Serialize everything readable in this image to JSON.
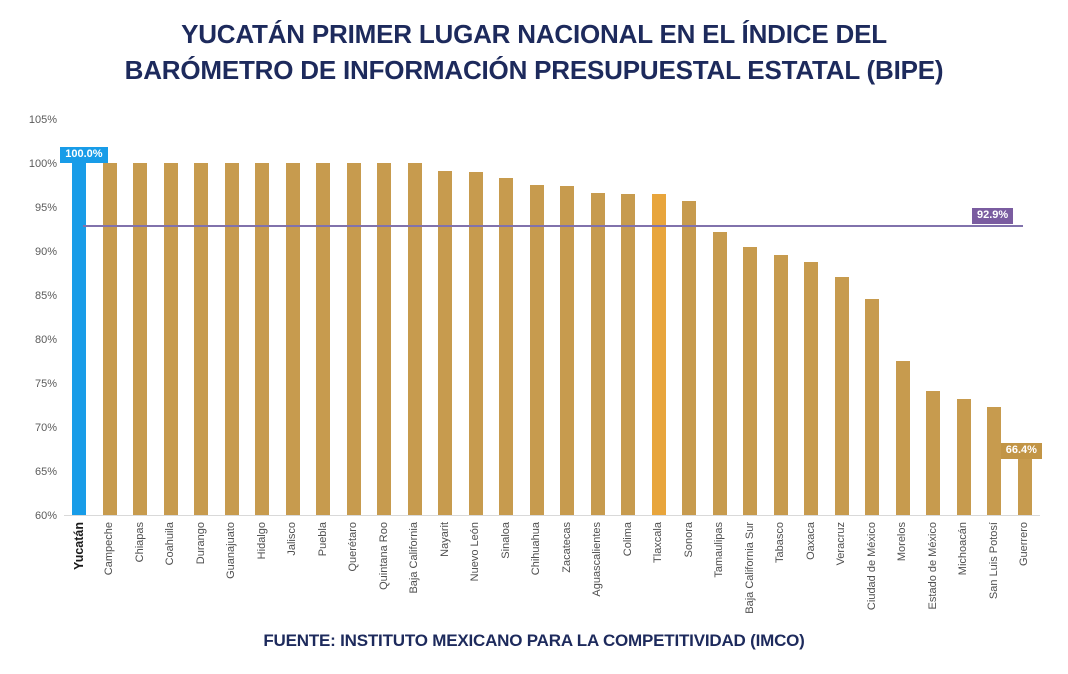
{
  "title": {
    "line1": "YUCATÁN PRIMER LUGAR NACIONAL EN EL ÍNDICE DEL",
    "line2": "BARÓMETRO DE INFORMACIÓN PRESUPUESTAL ESTATAL (BIPE)"
  },
  "footer": "FUENTE: INSTITUTO MEXICANO PARA LA COMPETITIVIDAD (IMCO)",
  "chart_data": {
    "type": "bar",
    "title": "Índice BIPE por estado",
    "ylim": [
      60,
      105
    ],
    "grid": false,
    "y_ticks": [
      "105%",
      "100%",
      "95%",
      "90%",
      "85%",
      "80%",
      "75%",
      "70%",
      "65%",
      "60%"
    ],
    "avg_line": {
      "value": 92.9,
      "label": "92.9%"
    },
    "series": [
      {
        "name": "Yucatán",
        "value": 100.0,
        "role": "leader",
        "badge": "100.0%",
        "badge_style": "blue"
      },
      {
        "name": "Campeche",
        "value": 100.0
      },
      {
        "name": "Chiapas",
        "value": 100.0
      },
      {
        "name": "Coahuila",
        "value": 100.0
      },
      {
        "name": "Durango",
        "value": 100.0
      },
      {
        "name": "Guanajuato",
        "value": 100.0
      },
      {
        "name": "Hidalgo",
        "value": 100.0
      },
      {
        "name": "Jalisco",
        "value": 100.0
      },
      {
        "name": "Puebla",
        "value": 100.0
      },
      {
        "name": "Querétaro",
        "value": 100.0
      },
      {
        "name": "Quintana Roo",
        "value": 100.0
      },
      {
        "name": "Baja California",
        "value": 100.0
      },
      {
        "name": "Nayarit",
        "value": 99.1
      },
      {
        "name": "Nuevo León",
        "value": 99.0
      },
      {
        "name": "Sinaloa",
        "value": 98.3
      },
      {
        "name": "Chihuahua",
        "value": 97.5
      },
      {
        "name": "Zacatecas",
        "value": 97.4
      },
      {
        "name": "Aguascalientes",
        "value": 96.6
      },
      {
        "name": "Colima",
        "value": 96.5
      },
      {
        "name": "Tlaxcala",
        "value": 96.5,
        "role": "highlight"
      },
      {
        "name": "Sonora",
        "value": 95.7
      },
      {
        "name": "Tamaulipas",
        "value": 92.2
      },
      {
        "name": "Baja California Sur",
        "value": 90.4
      },
      {
        "name": "Tabasco",
        "value": 89.6
      },
      {
        "name": "Oaxaca",
        "value": 88.7
      },
      {
        "name": "Veracruz",
        "value": 87.1
      },
      {
        "name": "Ciudad de México",
        "value": 84.5
      },
      {
        "name": "Morelos",
        "value": 77.5
      },
      {
        "name": "Estado de México",
        "value": 74.1
      },
      {
        "name": "Michoacán",
        "value": 73.2
      },
      {
        "name": "San Luis Potosí",
        "value": 72.3
      },
      {
        "name": "Guerrero",
        "value": 66.4,
        "badge": "66.4%",
        "badge_style": "gold"
      }
    ]
  },
  "colors": {
    "title_navy": "#1d2a5c",
    "bar_gold": "#c79b4e",
    "bar_blue": "#189ce8",
    "bar_orange": "#e8a53c",
    "avg_line_purple": "#8172ac",
    "avg_badge_purple": "#7a5ca0",
    "value_badge_gold": "#c29546",
    "axis_gray": "#d9d9d9",
    "ylabel_gray": "#5b5b5b",
    "xlabel_gray": "#4f4f4f",
    "xlabel_leader": "#1a1a1a"
  }
}
